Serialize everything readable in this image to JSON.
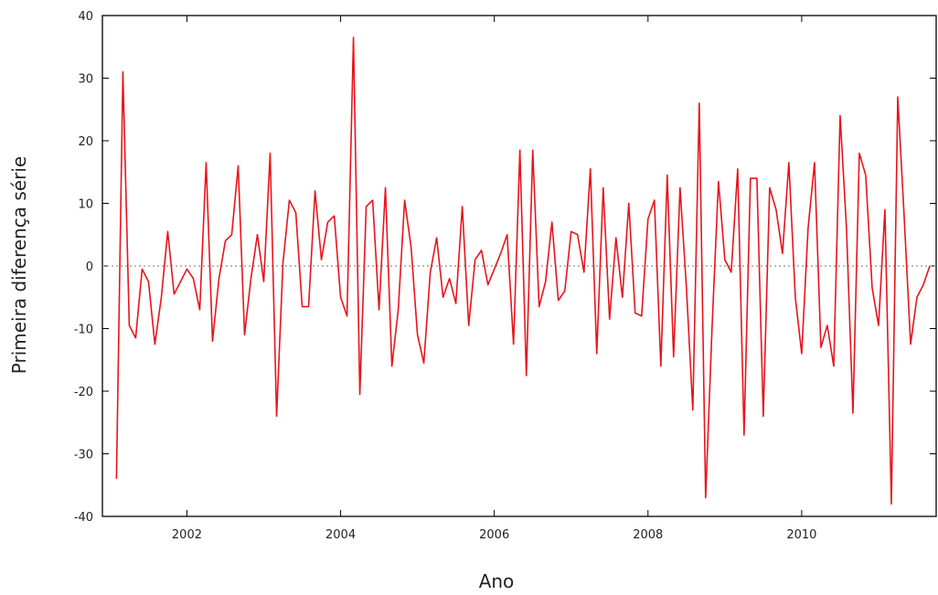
{
  "chart_data": {
    "type": "line",
    "title": "",
    "xlabel": "Ano",
    "ylabel": "Primeira diferença série",
    "xlim": [
      2000.9,
      2011.75
    ],
    "ylim": [
      -40,
      40
    ],
    "x_ticks": [
      2002,
      2004,
      2006,
      2008,
      2010
    ],
    "y_ticks": [
      -40,
      -30,
      -20,
      -10,
      0,
      10,
      20,
      30,
      40
    ],
    "zero_reference_line": true,
    "grid": false,
    "legend": "none",
    "series": [
      {
        "color": "#e8141c",
        "x": [
          2001.083,
          2001.167,
          2001.25,
          2001.333,
          2001.417,
          2001.5,
          2001.583,
          2001.667,
          2001.75,
          2001.833,
          2001.917,
          2002.0,
          2002.083,
          2002.167,
          2002.25,
          2002.333,
          2002.417,
          2002.5,
          2002.583,
          2002.667,
          2002.75,
          2002.833,
          2002.917,
          2003.0,
          2003.083,
          2003.167,
          2003.25,
          2003.333,
          2003.417,
          2003.5,
          2003.583,
          2003.667,
          2003.75,
          2003.833,
          2003.917,
          2004.0,
          2004.083,
          2004.167,
          2004.25,
          2004.333,
          2004.417,
          2004.5,
          2004.583,
          2004.667,
          2004.75,
          2004.833,
          2004.917,
          2005.0,
          2005.083,
          2005.167,
          2005.25,
          2005.333,
          2005.417,
          2005.5,
          2005.583,
          2005.667,
          2005.75,
          2005.833,
          2005.917,
          2006.0,
          2006.083,
          2006.167,
          2006.25,
          2006.333,
          2006.417,
          2006.5,
          2006.583,
          2006.667,
          2006.75,
          2006.833,
          2006.917,
          2007.0,
          2007.083,
          2007.167,
          2007.25,
          2007.333,
          2007.417,
          2007.5,
          2007.583,
          2007.667,
          2007.75,
          2007.833,
          2007.917,
          2008.0,
          2008.083,
          2008.167,
          2008.25,
          2008.333,
          2008.417,
          2008.5,
          2008.583,
          2008.667,
          2008.75,
          2008.833,
          2008.917,
          2009.0,
          2009.083,
          2009.167,
          2009.25,
          2009.333,
          2009.417,
          2009.5,
          2009.583,
          2009.667,
          2009.75,
          2009.833,
          2009.917,
          2010.0,
          2010.083,
          2010.167,
          2010.25,
          2010.333,
          2010.417,
          2010.5,
          2010.583,
          2010.667,
          2010.75,
          2010.833,
          2010.917,
          2011.0,
          2011.083,
          2011.167,
          2011.25,
          2011.333,
          2011.417,
          2011.5,
          2011.583,
          2011.667
        ],
        "y": [
          -34,
          31,
          -9.5,
          -11.5,
          -0.5,
          -2.5,
          -12.5,
          -5,
          5.5,
          -4.5,
          -2.5,
          -0.5,
          -2,
          -7,
          16.5,
          -12,
          -2,
          4,
          5,
          16,
          -11,
          -2,
          5,
          -2.5,
          18,
          -24,
          0.5,
          10.5,
          8.5,
          -6.5,
          -6.5,
          12,
          1,
          7,
          8,
          -5,
          -8,
          36.5,
          -20.5,
          9.5,
          10.5,
          -7,
          12.5,
          -16,
          -7,
          10.5,
          3,
          -11,
          -15.5,
          -1,
          4.5,
          -5,
          -2,
          -6,
          9.5,
          -9.5,
          1,
          2.5,
          -3,
          -0.5,
          2,
          5,
          -12.5,
          18.5,
          -17.5,
          18.5,
          -6.5,
          -2.5,
          7,
          -5.5,
          -4,
          5.5,
          5,
          -1,
          15.5,
          -14,
          12.5,
          -8.5,
          4.5,
          -5,
          10,
          -7.5,
          -8,
          7.5,
          10.5,
          -16,
          14.5,
          -14.5,
          12.5,
          -3.5,
          -23,
          26,
          -37,
          -10,
          13.5,
          1,
          -1,
          15.5,
          -27,
          14,
          14,
          -24,
          12.5,
          9,
          2,
          16.5,
          -5,
          -14,
          6,
          16.5,
          -13,
          -9.5,
          -16,
          24,
          6,
          -23.5,
          18,
          14.5,
          -3.5,
          -9.5,
          9,
          -38,
          27,
          8,
          -12.5,
          -5,
          -3,
          0
        ]
      }
    ]
  }
}
